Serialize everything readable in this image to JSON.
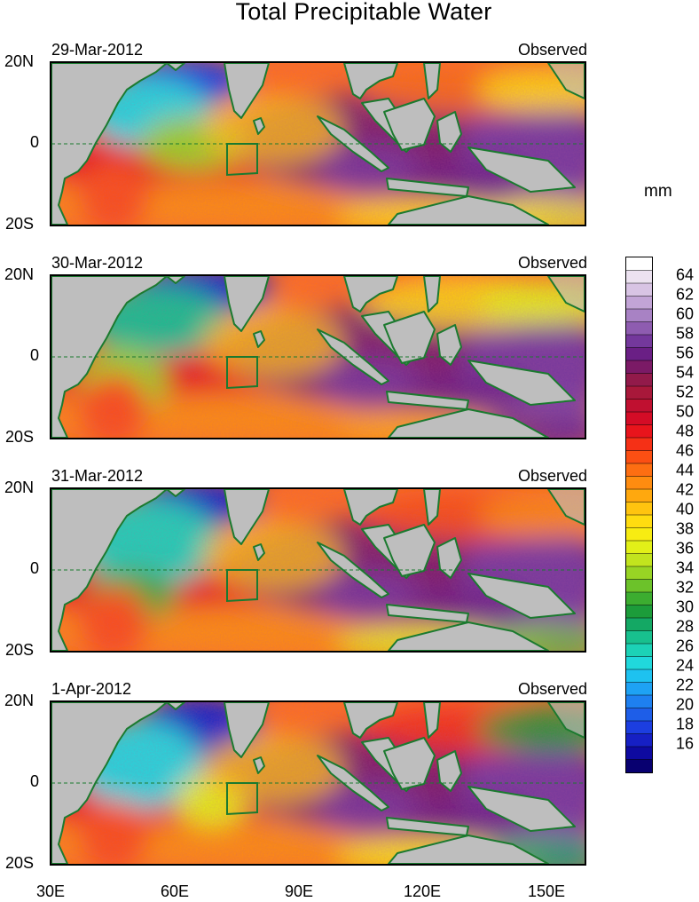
{
  "title": "Total Precipitable Water",
  "panels": [
    {
      "date": "29-Mar-2012",
      "label": "Observed"
    },
    {
      "date": "30-Mar-2012",
      "label": "Observed"
    },
    {
      "date": "31-Mar-2012",
      "label": "Observed"
    },
    {
      "date": "1-Apr-2012",
      "label": "Observed"
    }
  ],
  "y_axis_labels": [
    "20N",
    "0",
    "20S"
  ],
  "x_axis_labels": [
    "30E",
    "60E",
    "90E",
    "120E",
    "150E"
  ],
  "colorbar": {
    "unit": "mm",
    "labels": [
      "64",
      "62",
      "60",
      "58",
      "56",
      "54",
      "52",
      "50",
      "48",
      "46",
      "44",
      "42",
      "40",
      "38",
      "36",
      "34",
      "32",
      "30",
      "28",
      "26",
      "24",
      "22",
      "20",
      "18",
      "16"
    ],
    "colors": [
      "#ffffff",
      "#ece2f0",
      "#d8c4e4",
      "#c2a4d6",
      "#a882c4",
      "#8e5cb0",
      "#74389c",
      "#6a1f85",
      "#7b1a66",
      "#921a4a",
      "#a8183a",
      "#c01030",
      "#d40c26",
      "#e8141c",
      "#f53016",
      "#fb4f13",
      "#fd6e12",
      "#fe8c10",
      "#ffa80e",
      "#ffc40f",
      "#ffdc10",
      "#f7ec12",
      "#e2f018",
      "#c2e41e",
      "#98d424",
      "#6cc22a",
      "#3cad30",
      "#1c9c3a",
      "#14a864",
      "#18c08e",
      "#1cd2b6",
      "#20d8dc",
      "#1ec2f0",
      "#1ea2f4",
      "#1e80f0",
      "#1e5ee8",
      "#1c3ee0",
      "#1620c4",
      "#0e0aa0",
      "#080070"
    ]
  },
  "legend_colors": {
    "land": "#bebebe",
    "coastline": "#1b7a2f",
    "box": "#1b7a2f"
  }
}
